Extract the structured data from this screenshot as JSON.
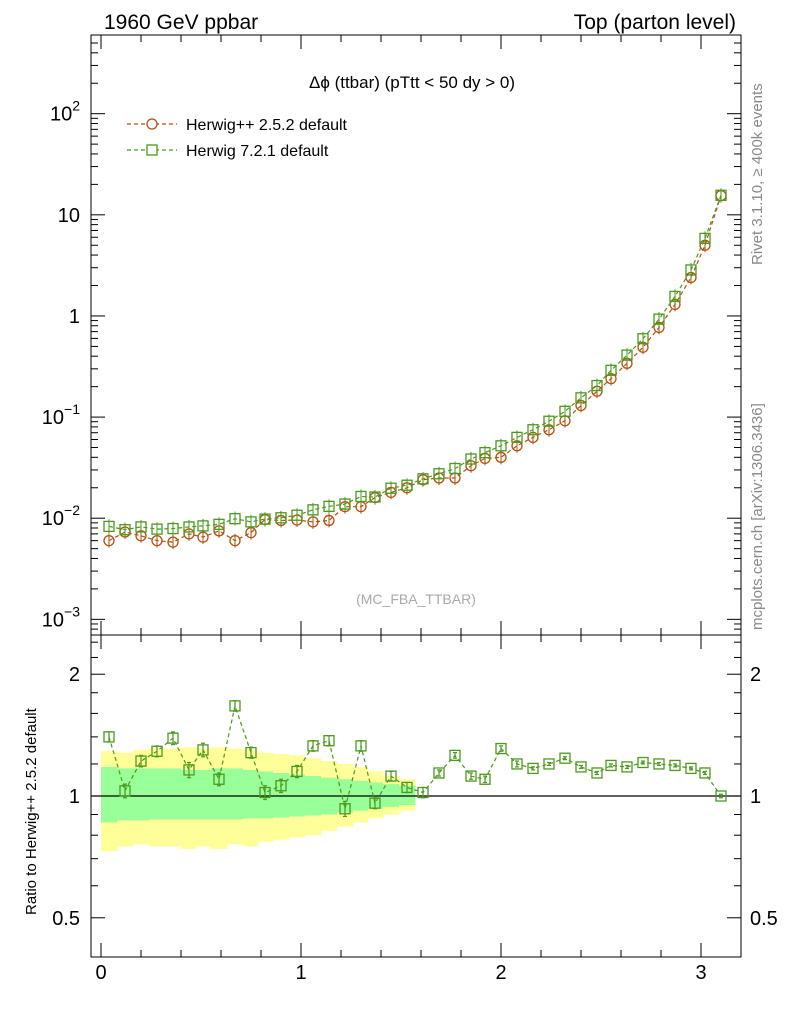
{
  "header": {
    "left_title": "1960 GeV ppbar",
    "right_title": "Top (parton level)"
  },
  "side_labels": {
    "rivet": "Rivet 3.1.10, ≥ 400k events",
    "mcplots": "mcplots.cern.ch [arXiv:1306.3436]"
  },
  "colors": {
    "herwigpp": "#b5500f",
    "herwig7": "#4a9a1c",
    "band_inner": "#99ff99",
    "band_outer": "#ffff99"
  },
  "chart_data": [
    {
      "type": "line",
      "panel": "main",
      "title": "Δϕ (ttbar) (pTtt < 50 dy > 0)",
      "watermark": "(MC_FBA_TTBAR)",
      "yscale": "log",
      "xlim": [
        -0.05,
        3.2
      ],
      "ylim": [
        0.0007,
        600
      ],
      "yticks": [
        {
          "value": 0.001,
          "base": "10",
          "exp": "−3"
        },
        {
          "value": 0.01,
          "base": "10",
          "exp": "−2"
        },
        {
          "value": 0.1,
          "base": "10",
          "exp": "−1"
        },
        {
          "value": 1,
          "base": "1",
          "exp": ""
        },
        {
          "value": 10,
          "base": "10",
          "exp": ""
        },
        {
          "value": 100,
          "base": "10",
          "exp": "2"
        }
      ],
      "legend_position": "top-left",
      "x": [
        0.04,
        0.12,
        0.2,
        0.28,
        0.36,
        0.44,
        0.51,
        0.59,
        0.67,
        0.75,
        0.82,
        0.9,
        0.98,
        1.06,
        1.14,
        1.22,
        1.3,
        1.37,
        1.45,
        1.53,
        1.61,
        1.69,
        1.77,
        1.85,
        1.92,
        2.0,
        2.08,
        2.16,
        2.24,
        2.32,
        2.4,
        2.48,
        2.55,
        2.63,
        2.71,
        2.79,
        2.87,
        2.95,
        3.02,
        3.1
      ],
      "series": [
        {
          "name": "Herwig++ 2.5.2 default",
          "marker": "circle",
          "values": [
            0.006,
            0.0073,
            0.0067,
            0.006,
            0.0058,
            0.007,
            0.0065,
            0.0075,
            0.006,
            0.0072,
            0.0097,
            0.0095,
            0.0096,
            0.0092,
            0.0095,
            0.013,
            0.013,
            0.016,
            0.018,
            0.02,
            0.024,
            0.025,
            0.025,
            0.033,
            0.039,
            0.04,
            0.052,
            0.063,
            0.075,
            0.092,
            0.13,
            0.18,
            0.24,
            0.34,
            0.49,
            0.77,
            1.3,
            2.4,
            5.0,
            15.5
          ]
        },
        {
          "name": "Herwig 7.2.1 default",
          "marker": "square",
          "values": [
            0.0083,
            0.0077,
            0.0082,
            0.0078,
            0.0079,
            0.0082,
            0.0084,
            0.0087,
            0.0099,
            0.0092,
            0.0098,
            0.0101,
            0.0107,
            0.0121,
            0.0131,
            0.0138,
            0.0164,
            0.0162,
            0.0198,
            0.0212,
            0.0245,
            0.0275,
            0.031,
            0.0385,
            0.0445,
            0.052,
            0.063,
            0.075,
            0.091,
            0.114,
            0.155,
            0.205,
            0.29,
            0.41,
            0.595,
            0.93,
            1.56,
            2.85,
            5.85,
            15.6
          ]
        }
      ]
    },
    {
      "type": "line",
      "panel": "ratio",
      "ylabel": "Ratio to Herwig++ 2.5.2 default",
      "yscale": "log",
      "xlim": [
        -0.05,
        3.2
      ],
      "ylim": [
        0.4,
        2.5
      ],
      "yticks": [
        0.5,
        1,
        2
      ],
      "ytick_labels": [
        "0.5",
        "1",
        "2"
      ],
      "xticks": [
        0,
        1,
        2,
        3
      ],
      "xtick_labels": [
        "0",
        "1",
        "2",
        "3"
      ],
      "x": [
        0.04,
        0.12,
        0.2,
        0.28,
        0.36,
        0.44,
        0.51,
        0.59,
        0.67,
        0.75,
        0.82,
        0.9,
        0.98,
        1.06,
        1.14,
        1.22,
        1.3,
        1.37,
        1.45,
        1.53,
        1.61,
        1.69,
        1.77,
        1.85,
        1.92,
        2.0,
        2.08,
        2.16,
        2.24,
        2.32,
        2.4,
        2.48,
        2.55,
        2.63,
        2.71,
        2.79,
        2.87,
        2.95,
        3.02,
        3.1
      ],
      "band_inner": [
        0.86,
        1.18,
        0.87,
        1.17,
        0.87,
        1.17,
        0.875,
        1.17,
        0.875,
        1.17,
        0.875,
        1.16,
        0.875,
        1.16,
        0.875,
        1.17,
        0.875,
        1.17,
        0.88,
        1.16,
        0.88,
        1.15,
        0.885,
        1.14,
        0.89,
        1.13,
        0.895,
        1.12,
        0.9,
        1.11,
        0.91,
        1.1,
        0.92,
        1.09,
        0.93,
        1.08,
        0.94,
        1.07,
        0.95,
        1.06
      ],
      "band_outer": [
        0.73,
        1.29,
        0.75,
        1.28,
        0.76,
        1.3,
        0.75,
        1.31,
        0.75,
        1.31,
        0.74,
        1.32,
        0.75,
        1.31,
        0.74,
        1.32,
        0.76,
        1.31,
        0.75,
        1.3,
        0.77,
        1.28,
        0.78,
        1.27,
        0.79,
        1.26,
        0.8,
        1.24,
        0.82,
        1.22,
        0.84,
        1.2,
        0.86,
        1.18,
        0.88,
        1.15,
        0.9,
        1.12,
        0.92,
        1.1
      ],
      "series": [
        {
          "name": "Herwig 7.2.1 default",
          "marker": "square",
          "values": [
            1.4,
            1.03,
            1.22,
            1.29,
            1.39,
            1.16,
            1.3,
            1.1,
            1.67,
            1.28,
            1.02,
            1.06,
            1.15,
            1.33,
            1.37,
            0.93,
            1.33,
            0.96,
            1.12,
            1.05,
            1.02,
            1.14,
            1.26,
            1.12,
            1.1,
            1.31,
            1.2,
            1.17,
            1.2,
            1.24,
            1.18,
            1.14,
            1.19,
            1.18,
            1.21,
            1.2,
            1.19,
            1.17,
            1.14,
            1.0
          ],
          "errors": [
            0.04,
            0.04,
            0.04,
            0.04,
            0.05,
            0.05,
            0.05,
            0.04,
            0.05,
            0.04,
            0.04,
            0.04,
            0.04,
            0.04,
            0.04,
            0.04,
            0.04,
            0.03,
            0.03,
            0.03,
            0.03,
            0.02,
            0.02,
            0.02,
            0.02,
            0.02,
            0.02,
            0.01,
            0.01,
            0.01,
            0.01,
            0.01,
            0.01,
            0.01,
            0.01,
            0.01,
            0.01,
            0.01,
            0.01,
            0.01
          ]
        }
      ]
    }
  ]
}
